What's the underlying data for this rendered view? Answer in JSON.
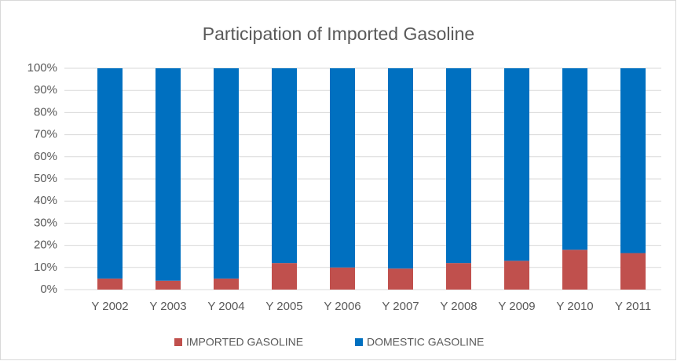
{
  "chart_data": {
    "type": "stacked_bar",
    "title": "Participation of Imported Gasoline",
    "categories": [
      "Y 2002",
      "Y 2003",
      "Y 2004",
      "Y 2005",
      "Y 2006",
      "Y 2007",
      "Y 2008",
      "Y 2009",
      "Y 2010",
      "Y 2011"
    ],
    "series": [
      {
        "name": "IMPORTED GASOLINE",
        "color": "#c0504d",
        "values": [
          5,
          4,
          5,
          12,
          10,
          9.5,
          12,
          13,
          18,
          16.5
        ]
      },
      {
        "name": "DOMESTIC GASOLINE",
        "color": "#0070c0",
        "values": [
          95,
          96,
          95,
          88,
          90,
          90.5,
          88,
          87,
          82,
          83.5
        ]
      }
    ],
    "ylim": [
      0,
      100
    ],
    "yticks": [
      {
        "value": 0,
        "label": "0%"
      },
      {
        "value": 10,
        "label": "10%"
      },
      {
        "value": 20,
        "label": "20%"
      },
      {
        "value": 30,
        "label": "30%"
      },
      {
        "value": 40,
        "label": "40%"
      },
      {
        "value": 50,
        "label": "50%"
      },
      {
        "value": 60,
        "label": "60%"
      },
      {
        "value": 70,
        "label": "70%"
      },
      {
        "value": 80,
        "label": "80%"
      },
      {
        "value": 90,
        "label": "90%"
      },
      {
        "value": 100,
        "label": "100%"
      }
    ],
    "grid": true,
    "legend": "bottom"
  }
}
